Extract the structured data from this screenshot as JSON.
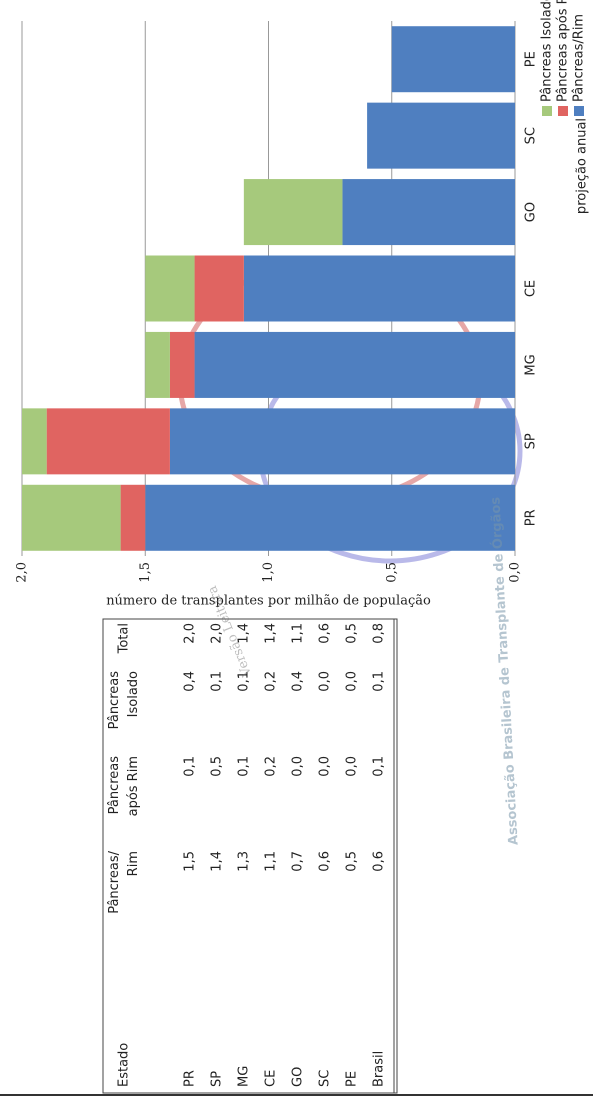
{
  "chart_data": {
    "type": "stacked_bar",
    "categories": [
      "PR",
      "SP",
      "MG",
      "CE",
      "GO",
      "SC",
      "PE"
    ],
    "series": [
      {
        "name": "Pâncreas/Rim",
        "color": "#4f7fc0",
        "values": [
          1.5,
          1.4,
          1.3,
          1.1,
          0.7,
          0.6,
          0.5
        ]
      },
      {
        "name": "Pâncreas após Rim",
        "color": "#e06461",
        "values": [
          0.1,
          0.5,
          0.1,
          0.2,
          0.0,
          0.0,
          0.0
        ]
      },
      {
        "name": "Pâncreas Isolado",
        "color": "#a6c97c",
        "values": [
          0.4,
          0.1,
          0.1,
          0.2,
          0.4,
          0.0,
          0.0
        ]
      }
    ],
    "ylabel": "número de transplantes por milhão de população",
    "ylim": [
      0,
      2
    ],
    "yticks": [
      {
        "value": 0,
        "label": "0,0"
      },
      {
        "value": 0.5,
        "label": "0,5"
      },
      {
        "value": 1,
        "label": "1,0"
      },
      {
        "value": 1.5,
        "label": "1,5"
      },
      {
        "value": 2,
        "label": "2,0"
      }
    ],
    "grid": true,
    "annotation": "projeção anual"
  },
  "table": {
    "header": [
      [
        "Estado"
      ],
      [
        "Pâncreas/",
        "Rim"
      ],
      [
        "Pâncreas",
        "após Rim"
      ],
      [
        "Pâncreas",
        "Isolado"
      ],
      [
        "Total"
      ]
    ],
    "rows": [
      [
        "PR",
        "1,5",
        "0,1",
        "0,4",
        "2,0"
      ],
      [
        "SP",
        "1,4",
        "0,5",
        "0,1",
        "2,0"
      ],
      [
        "MG",
        "1,3",
        "0,1",
        "0,1",
        "1,4"
      ],
      [
        "CE",
        "1,1",
        "0,2",
        "0,2",
        "1,4"
      ],
      [
        "GO",
        "0,7",
        "0,0",
        "0,4",
        "1,1"
      ],
      [
        "SC",
        "0,6",
        "0,0",
        "0,0",
        "0,6"
      ],
      [
        "PE",
        "0,5",
        "0,0",
        "0,0",
        "0,5"
      ],
      [
        "Brasil",
        "0,6",
        "0,1",
        "0,1",
        "0,8"
      ]
    ]
  },
  "watermark": {
    "main": "Versão Leitura",
    "org": "Associação Brasileira de Transplante de Órgãos"
  }
}
